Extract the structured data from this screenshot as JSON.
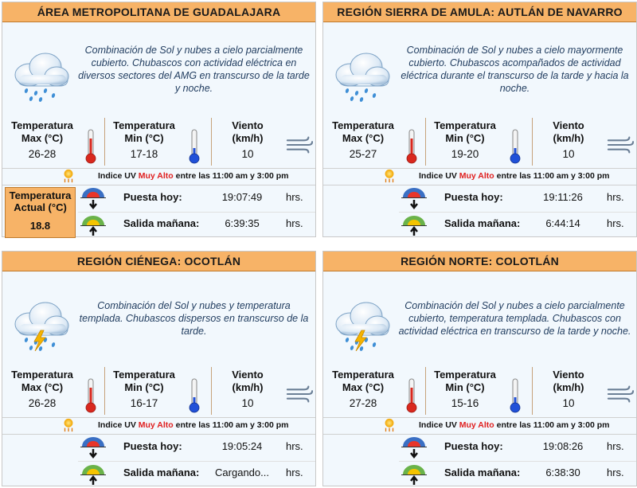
{
  "labels": {
    "temp_max": [
      "Temperatura",
      "Max (°C)"
    ],
    "temp_min": [
      "Temperatura",
      "Min (°C)"
    ],
    "wind": [
      "Viento",
      "(km/h)"
    ],
    "uv_prefix": "Indice UV ",
    "uv_level": "Muy Alto",
    "uv_suffix": " entre las 11:00 am y 3:00 pm",
    "sunset": "Puesta hoy:",
    "sunrise": "Salida mañana:",
    "hrs": "hrs.",
    "actual_temp": [
      "Temperatura",
      "Actual (°C)"
    ]
  },
  "icons": {
    "weather_panel0": "cloud-rain-icon",
    "weather_panel1": "cloud-rain-icon",
    "weather_panel2": "cloud-storm-icon",
    "weather_panel3": "cloud-storm-icon",
    "thermometer_max": "thermometer-red-icon",
    "thermometer_min": "thermometer-blue-icon",
    "wind": "wind-icon",
    "uv": "sun-uv-icon",
    "sunset": "sunset-icon",
    "sunrise": "sunrise-icon"
  },
  "colors": {
    "header": "#f7b367",
    "uv_high": "#e02020",
    "desc_text": "#1f3b5e",
    "panel_bg": "#f2f8fd"
  },
  "panels": [
    {
      "title": "ÁREA METROPOLITANA DE GUADALAJARA",
      "description": "Combinación de Sol y nubes a cielo parcialmente cubierto. Chubascos con actividad eléctrica en diversos sectores del AMG en transcurso de la tarde y noche.",
      "temp_max": "26-28",
      "temp_min": "17-18",
      "wind": "10",
      "actual_temp": "18.8",
      "sunset": "19:07:49",
      "sunrise": "6:39:35"
    },
    {
      "title": "REGIÓN SIERRA DE AMULA: AUTLÁN DE NAVARRO",
      "description": "Combinación de Sol y nubes a cielo mayormente cubierto. Chubascos acompañados de actividad eléctrica durante el transcurso de la tarde y hacia la noche.",
      "temp_max": "25-27",
      "temp_min": "19-20",
      "wind": "10",
      "sunset": "19:11:26",
      "sunrise": "6:44:14"
    },
    {
      "title": "REGIÓN CIÉNEGA: OCOTLÁN",
      "description": "Combinación del Sol y nubes y temperatura templada. Chubascos dispersos en transcurso de la tarde.",
      "temp_max": "26-28",
      "temp_min": "16-17",
      "wind": "10",
      "sunset": "19:05:24",
      "sunrise": "Cargando..."
    },
    {
      "title": "REGIÓN NORTE: COLOTLÁN",
      "description": "Combinación del Sol y nubes a cielo parcialmente cubierto, temperatura templada. Chubascos con actividad eléctrica en transcurso de la tarde y noche.",
      "temp_max": "27-28",
      "temp_min": "15-16",
      "wind": "10",
      "sunset": "19:08:26",
      "sunrise": "6:38:30"
    }
  ]
}
